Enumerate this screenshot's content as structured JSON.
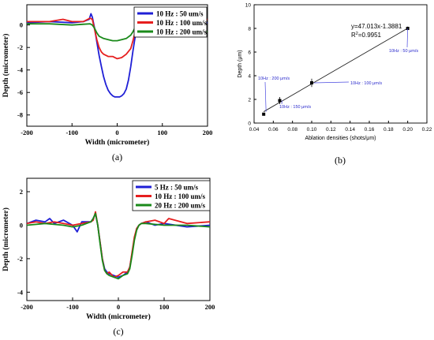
{
  "chart_data": [
    {
      "panel_label": "(a)",
      "type": "line",
      "xlabel": "Width (micrometer)",
      "ylabel": "Depth (micrometer)",
      "xlim": [
        -200,
        200
      ],
      "ylim": [
        -9,
        1.8
      ],
      "xticks": [
        -200,
        -100,
        0,
        100,
        200
      ],
      "yticks": [
        0,
        -2,
        -4,
        -6,
        -8
      ],
      "legend": "top-right",
      "series": [
        {
          "name": "10 Hz : 50 um/s",
          "color": "#1f1fd6",
          "x": [
            -200,
            -150,
            -100,
            -75,
            -62,
            -58,
            -55,
            -50,
            -45,
            -40,
            -35,
            -30,
            -25,
            -20,
            -15,
            -10,
            -5,
            0,
            5,
            10,
            15,
            20,
            25,
            30,
            35,
            40,
            45,
            50,
            55,
            60,
            75,
            100,
            150,
            200
          ],
          "y": [
            0.2,
            0.3,
            0.2,
            0.3,
            0.5,
            1.0,
            0.7,
            -0.3,
            -1.5,
            -2.7,
            -3.7,
            -4.6,
            -5.3,
            -5.8,
            -6.1,
            -6.3,
            -6.4,
            -6.4,
            -6.4,
            -6.3,
            -6.1,
            -5.7,
            -4.9,
            -3.7,
            -2.3,
            -1.0,
            -0.2,
            0.2,
            0.3,
            0.3,
            0.3,
            0.2,
            0.2,
            0.2
          ]
        },
        {
          "name": "10 Hz : 100 um/s",
          "color": "#e61e1e",
          "x": [
            -200,
            -150,
            -120,
            -100,
            -75,
            -60,
            -55,
            -50,
            -45,
            -40,
            -35,
            -30,
            -20,
            -10,
            0,
            10,
            20,
            30,
            35,
            40,
            45,
            50,
            60,
            75,
            100,
            150,
            200
          ],
          "y": [
            0.3,
            0.3,
            0.5,
            0.3,
            0.3,
            0.6,
            0.5,
            -0.4,
            -1.3,
            -2.0,
            -2.4,
            -2.6,
            -2.8,
            -2.8,
            -3.0,
            -2.9,
            -2.6,
            -2.1,
            -1.4,
            -0.6,
            0.0,
            0.3,
            0.5,
            0.3,
            0.3,
            0.1,
            0.5
          ]
        },
        {
          "name": "10 Hz : 200 um/s",
          "color": "#1a8a1a",
          "x": [
            -200,
            -150,
            -100,
            -60,
            -55,
            -50,
            -45,
            -40,
            -30,
            -20,
            -10,
            0,
            10,
            20,
            30,
            35,
            40,
            45,
            50,
            60,
            100,
            150,
            200
          ],
          "y": [
            0.1,
            0.1,
            0.0,
            0.1,
            0.0,
            -0.3,
            -0.7,
            -1.0,
            -1.2,
            -1.3,
            -1.4,
            -1.4,
            -1.3,
            -1.2,
            -0.9,
            -0.6,
            -0.2,
            0.0,
            0.1,
            0.0,
            -0.2,
            -0.4,
            -0.6
          ]
        }
      ]
    },
    {
      "panel_label": "(b)",
      "type": "scatter",
      "xlabel": "Ablation densities (shots/μm)",
      "ylabel": "Depth (μm)",
      "xlim": [
        0.04,
        0.22
      ],
      "ylim": [
        0,
        10
      ],
      "xticks": [
        "0.04",
        "0.06",
        "0.08",
        "0.10",
        "0.12",
        "0.14",
        "0.16",
        "0.18",
        "0.20",
        "0.22"
      ],
      "yticks": [
        "0",
        "2",
        "4",
        "6",
        "8",
        "10"
      ],
      "points": [
        {
          "x": 0.05,
          "y": 0.75,
          "err": 0.1
        },
        {
          "x": 0.0667,
          "y": 1.9,
          "err": 0.3
        },
        {
          "x": 0.1,
          "y": 3.4,
          "err": 0.35
        },
        {
          "x": 0.2,
          "y": 8.0,
          "err": 0.15
        }
      ],
      "fit": {
        "slope": 47.013,
        "intercept": -1.3881,
        "x_range": [
          0.05,
          0.2
        ]
      },
      "equation_text": "y=47.013x-1.3881",
      "r2_prefix": "R",
      "r2_exponent": "2",
      "r2_value": "=0.9951",
      "annotations": [
        {
          "text": "10Hz : 50 μm/s",
          "x": 0.2,
          "y": 8.0
        },
        {
          "text": "10Hz : 100 μm/s",
          "x": 0.1,
          "y": 3.4
        },
        {
          "text": "10Hz : 150 μm/s",
          "x": 0.0667,
          "y": 1.9
        },
        {
          "text": "10Hz : 200 μm/s",
          "x": 0.05,
          "y": 0.75
        }
      ]
    },
    {
      "panel_label": "(c)",
      "type": "line",
      "xlabel": "Width (micrometer)",
      "ylabel": "Depth (micrometer)",
      "xlim": [
        -200,
        200
      ],
      "ylim": [
        -4.5,
        2.8
      ],
      "xticks": [
        -200,
        -100,
        0,
        100,
        200
      ],
      "yticks": [
        2,
        0,
        -2,
        -4
      ],
      "legend": "top-right",
      "series": [
        {
          "name": "5 Hz : 50 um/s",
          "color": "#1f1fd6",
          "x": [
            -200,
            -180,
            -160,
            -150,
            -140,
            -120,
            -100,
            -90,
            -80,
            -60,
            -55,
            -50,
            -45,
            -40,
            -35,
            -30,
            -25,
            -20,
            -10,
            0,
            10,
            20,
            25,
            30,
            35,
            40,
            45,
            50,
            60,
            80,
            100,
            150,
            200
          ],
          "y": [
            0.1,
            0.3,
            0.2,
            0.4,
            0.1,
            0.3,
            0.0,
            -0.4,
            0.2,
            0.2,
            0.4,
            0.7,
            0.0,
            -1.0,
            -2.0,
            -2.6,
            -2.8,
            -2.9,
            -3.0,
            -3.1,
            -3.0,
            -2.8,
            -2.5,
            -1.7,
            -0.8,
            -0.2,
            0.0,
            0.1,
            0.2,
            0.0,
            0.1,
            -0.1,
            0.0
          ]
        },
        {
          "name": "10 Hz : 100 um/s",
          "color": "#e61e1e",
          "x": [
            -200,
            -180,
            -160,
            -140,
            -120,
            -100,
            -80,
            -60,
            -55,
            -50,
            -45,
            -40,
            -35,
            -30,
            -25,
            -20,
            -10,
            0,
            10,
            20,
            25,
            30,
            35,
            40,
            45,
            50,
            60,
            80,
            100,
            110,
            150,
            200
          ],
          "y": [
            0.1,
            0.2,
            0.1,
            0.2,
            0.1,
            0.0,
            0.1,
            0.2,
            0.3,
            0.8,
            0.0,
            -1.0,
            -2.0,
            -2.7,
            -2.9,
            -2.8,
            -3.1,
            -3.0,
            -2.8,
            -2.8,
            -2.5,
            -1.6,
            -0.7,
            -0.2,
            0.0,
            0.1,
            0.2,
            0.3,
            0.1,
            0.4,
            0.1,
            0.2
          ]
        },
        {
          "name": "20 Hz : 200 um/s",
          "color": "#1a8a1a",
          "x": [
            -200,
            -160,
            -120,
            -100,
            -80,
            -60,
            -55,
            -50,
            -45,
            -40,
            -35,
            -30,
            -25,
            -20,
            -10,
            0,
            10,
            20,
            25,
            30,
            35,
            40,
            45,
            50,
            60,
            100,
            150,
            200
          ],
          "y": [
            0.0,
            0.1,
            0.0,
            -0.1,
            0.0,
            0.2,
            0.4,
            0.7,
            0.0,
            -1.1,
            -2.1,
            -2.7,
            -2.9,
            -3.0,
            -3.1,
            -3.2,
            -3.0,
            -2.9,
            -2.6,
            -1.8,
            -0.9,
            -0.3,
            0.0,
            0.1,
            0.1,
            0.0,
            0.0,
            -0.1
          ]
        }
      ]
    }
  ]
}
